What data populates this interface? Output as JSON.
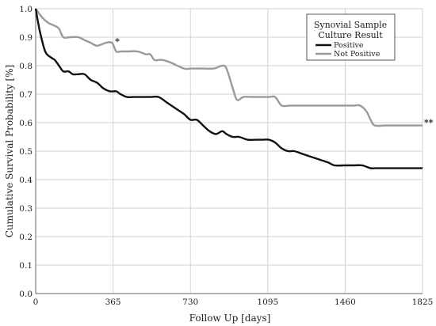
{
  "chart_data": {
    "type": "line",
    "title": "",
    "xlabel": "Follow Up [days]",
    "ylabel": "Cumulative Survival Probability [%]",
    "xlim": [
      0,
      1825
    ],
    "ylim": [
      0,
      1.0
    ],
    "xticks": [
      0,
      365,
      730,
      1095,
      1460,
      1825
    ],
    "xtick_labels": [
      "0",
      "365",
      "730",
      "1095",
      "1460",
      "1825"
    ],
    "yticks": [
      0,
      0.1,
      0.2,
      0.3,
      0.4,
      0.5,
      0.6,
      0.7,
      0.8,
      0.9,
      1.0
    ],
    "ytick_labels": [
      "0.0",
      "0.1",
      "0.2",
      "0.3",
      "0.4",
      "0.5",
      "0.6",
      "0.7",
      "0.8",
      "0.9",
      "1.0"
    ],
    "grid": true,
    "legend": {
      "title": [
        "Synovial Sample",
        "Culture Result"
      ],
      "placement": "top-right"
    },
    "series": [
      {
        "name": "Positive",
        "color": "#111111",
        "x": [
          0,
          20,
          45,
          70,
          90,
          110,
          130,
          155,
          175,
          200,
          230,
          260,
          290,
          320,
          350,
          380,
          400,
          430,
          460,
          500,
          540,
          580,
          620,
          660,
          700,
          730,
          760,
          790,
          820,
          850,
          880,
          900,
          930,
          960,
          1000,
          1040,
          1070,
          1100,
          1130,
          1160,
          1190,
          1220,
          1260,
          1300,
          1340,
          1380,
          1410,
          1460,
          1500,
          1540,
          1580,
          1600,
          1650,
          1700,
          1825
        ],
        "y": [
          1.0,
          0.92,
          0.85,
          0.83,
          0.82,
          0.8,
          0.78,
          0.78,
          0.77,
          0.77,
          0.77,
          0.75,
          0.74,
          0.72,
          0.71,
          0.71,
          0.7,
          0.69,
          0.69,
          0.69,
          0.69,
          0.69,
          0.67,
          0.65,
          0.63,
          0.61,
          0.61,
          0.59,
          0.57,
          0.56,
          0.57,
          0.56,
          0.55,
          0.55,
          0.54,
          0.54,
          0.54,
          0.54,
          0.53,
          0.51,
          0.5,
          0.5,
          0.49,
          0.48,
          0.47,
          0.46,
          0.45,
          0.45,
          0.45,
          0.45,
          0.44,
          0.44,
          0.44,
          0.44,
          0.44
        ]
      },
      {
        "name": "Not Positive",
        "color": "#9a9a9a",
        "x": [
          0,
          30,
          60,
          90,
          110,
          130,
          160,
          200,
          230,
          260,
          290,
          330,
          360,
          380,
          400,
          430,
          480,
          520,
          540,
          560,
          580,
          600,
          640,
          700,
          740,
          780,
          840,
          880,
          900,
          930,
          950,
          980,
          1020,
          1060,
          1100,
          1130,
          1160,
          1200,
          1250,
          1300,
          1350,
          1400,
          1450,
          1500,
          1530,
          1560,
          1580,
          1600,
          1650,
          1700,
          1825
        ],
        "y": [
          1.0,
          0.97,
          0.95,
          0.94,
          0.93,
          0.9,
          0.9,
          0.9,
          0.89,
          0.88,
          0.87,
          0.88,
          0.88,
          0.85,
          0.85,
          0.85,
          0.85,
          0.84,
          0.84,
          0.82,
          0.82,
          0.82,
          0.81,
          0.79,
          0.79,
          0.79,
          0.79,
          0.8,
          0.79,
          0.72,
          0.68,
          0.69,
          0.69,
          0.69,
          0.69,
          0.69,
          0.66,
          0.66,
          0.66,
          0.66,
          0.66,
          0.66,
          0.66,
          0.66,
          0.66,
          0.64,
          0.61,
          0.59,
          0.59,
          0.59,
          0.59
        ]
      }
    ],
    "annotations": [
      {
        "text": "*",
        "x": 385,
        "y": 0.875
      },
      {
        "text": "**",
        "x": 1825,
        "y": 0.59
      }
    ]
  }
}
